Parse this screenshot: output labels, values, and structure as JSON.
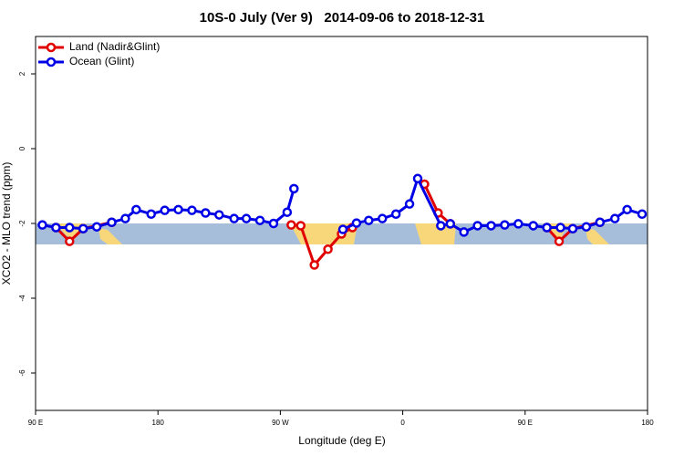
{
  "chart_data": {
    "type": "line",
    "title": "10S-0 July (Ver 9)   2014-09-06 to 2018-12-31",
    "xlabel": "Longitude (deg E)",
    "ylabel": "XCO2 - MLO trend (ppm)",
    "xlim": [
      90,
      540
    ],
    "ylim": [
      -7,
      3
    ],
    "xticks": [
      {
        "value": 90,
        "label": "90 E"
      },
      180,
      {
        "value": 270,
        "label": "90 W"
      },
      {
        "value": 360,
        "label": "0"
      },
      {
        "value": 450,
        "label": "90 E"
      },
      {
        "value": 540,
        "label": "180"
      }
    ],
    "yticks": [
      -6,
      -4,
      -2,
      0,
      2
    ],
    "legend": "top-left",
    "series": [
      {
        "name": "Land (Nadir&Glint)",
        "color": "#e00000",
        "x": [
          105,
          115,
          125,
          146,
          null,
          278,
          285,
          295,
          305,
          315,
          323,
          null,
          376,
          386,
          395,
          null,
          466,
          475,
          485,
          505
        ],
        "values": [
          -2.11,
          -2.48,
          -2.14,
          -1.97,
          null,
          -2.04,
          -2.06,
          -3.11,
          -2.69,
          -2.28,
          -2.11,
          null,
          -0.95,
          -1.72,
          -2.01,
          null,
          -2.11,
          -2.48,
          -2.14,
          -1.97
        ]
      },
      {
        "name": "Ocean (Glint)",
        "color": "#0000e6",
        "x": [
          95,
          105,
          115,
          125,
          135,
          146,
          156,
          164,
          175,
          185,
          195,
          205,
          215,
          225,
          236,
          245,
          255,
          265,
          275,
          280,
          null,
          316,
          326,
          335,
          345,
          355,
          365,
          371,
          388,
          395,
          405,
          415,
          425,
          435,
          445,
          456,
          466,
          476,
          485,
          495,
          505,
          516,
          525,
          536
        ],
        "values": [
          -2.04,
          -2.11,
          -2.11,
          -2.14,
          -2.09,
          -1.97,
          -1.87,
          -1.63,
          -1.75,
          -1.65,
          -1.63,
          -1.65,
          -1.72,
          -1.77,
          -1.87,
          -1.87,
          -1.92,
          -2.0,
          -1.7,
          -1.07,
          null,
          -2.16,
          -1.99,
          -1.92,
          -1.87,
          -1.75,
          -1.48,
          -0.8,
          -2.06,
          -2.01,
          -2.23,
          -2.06,
          -2.06,
          -2.04,
          -2.01,
          -2.06,
          -2.11,
          -2.11,
          -2.14,
          -2.09,
          -1.97,
          -1.87,
          -1.63,
          -1.75
        ]
      }
    ]
  }
}
